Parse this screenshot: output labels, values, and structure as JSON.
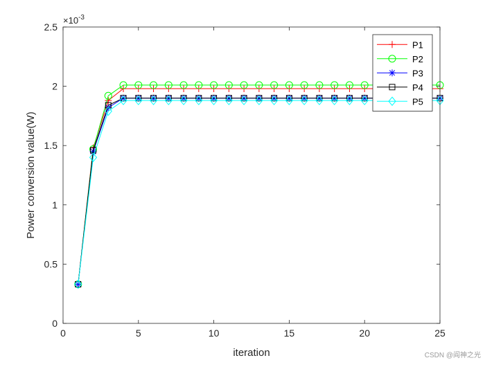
{
  "chart_data": {
    "type": "line",
    "xlabel": "iteration",
    "ylabel": "Power conversion value(W)",
    "y_exponent_label": "×10",
    "y_exponent_power": "-3",
    "xlim": [
      0,
      25
    ],
    "ylim": [
      0,
      2.5
    ],
    "xticks": [
      0,
      5,
      10,
      15,
      20,
      25
    ],
    "yticks": [
      0,
      0.5,
      1,
      1.5,
      2,
      2.5
    ],
    "xtick_labels": [
      "0",
      "5",
      "10",
      "15",
      "20",
      "25"
    ],
    "ytick_labels": [
      "0",
      "0.5",
      "1",
      "1.5",
      "2",
      "2.5"
    ],
    "y_scale_note": "values in units of 1e-3 W",
    "grid": false,
    "legend_position": "top-right",
    "x": [
      1,
      2,
      3,
      4,
      5,
      6,
      7,
      8,
      9,
      10,
      11,
      12,
      13,
      14,
      15,
      16,
      17,
      18,
      19,
      20,
      21,
      22,
      23,
      24,
      25
    ],
    "series": [
      {
        "name": "P1",
        "color": "#ff0000",
        "marker": "plus",
        "values": [
          0.33,
          1.48,
          1.88,
          1.98,
          1.98,
          1.98,
          1.98,
          1.98,
          1.98,
          1.98,
          1.98,
          1.98,
          1.98,
          1.98,
          1.98,
          1.98,
          1.98,
          1.98,
          1.98,
          1.98,
          1.98,
          1.98,
          1.98,
          1.98,
          1.98
        ]
      },
      {
        "name": "P2",
        "color": "#00ff00",
        "marker": "circle",
        "values": [
          0.33,
          1.47,
          1.92,
          2.01,
          2.01,
          2.01,
          2.01,
          2.01,
          2.01,
          2.01,
          2.01,
          2.01,
          2.01,
          2.01,
          2.01,
          2.01,
          2.01,
          2.01,
          2.01,
          2.01,
          2.01,
          2.01,
          2.01,
          2.01,
          2.01
        ]
      },
      {
        "name": "P3",
        "color": "#0000ff",
        "marker": "asterisk",
        "values": [
          0.33,
          1.45,
          1.82,
          1.9,
          1.9,
          1.9,
          1.9,
          1.9,
          1.9,
          1.9,
          1.9,
          1.9,
          1.9,
          1.9,
          1.9,
          1.9,
          1.9,
          1.9,
          1.9,
          1.9,
          1.9,
          1.9,
          1.9,
          1.9,
          1.9
        ]
      },
      {
        "name": "P4",
        "color": "#000000",
        "marker": "square",
        "values": [
          0.33,
          1.46,
          1.84,
          1.9,
          1.9,
          1.9,
          1.9,
          1.9,
          1.9,
          1.9,
          1.9,
          1.9,
          1.9,
          1.9,
          1.9,
          1.9,
          1.9,
          1.9,
          1.9,
          1.9,
          1.9,
          1.9,
          1.9,
          1.9,
          1.9
        ]
      },
      {
        "name": "P5",
        "color": "#00ffff",
        "marker": "diamond",
        "values": [
          0.33,
          1.4,
          1.79,
          1.88,
          1.88,
          1.88,
          1.88,
          1.88,
          1.88,
          1.88,
          1.88,
          1.88,
          1.88,
          1.88,
          1.88,
          1.88,
          1.88,
          1.88,
          1.88,
          1.88,
          1.88,
          1.88,
          1.88,
          1.88,
          1.88
        ]
      }
    ]
  },
  "watermark": "CSDN @阎神之光"
}
